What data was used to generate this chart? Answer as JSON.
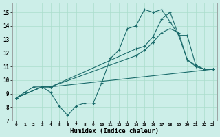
{
  "title": "",
  "xlabel": "Humidex (Indice chaleur)",
  "background_color": "#cceee8",
  "grid_color": "#aaddcc",
  "line_color": "#1a6b6b",
  "xlim": [
    -0.5,
    23.5
  ],
  "ylim": [
    7,
    15.7
  ],
  "yticks": [
    7,
    8,
    9,
    10,
    11,
    12,
    13,
    14,
    15
  ],
  "xticks": [
    0,
    1,
    2,
    3,
    4,
    5,
    6,
    7,
    8,
    9,
    10,
    11,
    12,
    13,
    14,
    15,
    16,
    17,
    18,
    19,
    20,
    21,
    22,
    23
  ],
  "lines": [
    {
      "x": [
        0,
        1,
        2,
        3,
        4,
        5,
        6,
        7,
        8,
        9,
        10,
        11,
        12,
        13,
        14,
        15,
        16,
        17,
        18,
        19,
        20,
        21,
        22,
        23
      ],
      "y": [
        8.7,
        9.1,
        9.5,
        9.5,
        9.1,
        8.1,
        7.4,
        8.1,
        8.3,
        8.3,
        9.8,
        11.6,
        12.2,
        13.8,
        14.0,
        15.2,
        15.0,
        15.2,
        14.3,
        13.3,
        11.5,
        11.1,
        10.8,
        10.8
      ]
    },
    {
      "x": [
        0,
        3,
        4,
        14,
        15,
        16,
        17,
        18,
        19,
        20,
        21,
        22,
        23
      ],
      "y": [
        8.7,
        9.5,
        9.5,
        12.3,
        12.5,
        13.2,
        14.5,
        15.0,
        13.3,
        13.3,
        11.1,
        10.8,
        10.8
      ]
    },
    {
      "x": [
        0,
        3,
        4,
        14,
        15,
        16,
        17,
        18,
        19,
        20,
        21,
        22,
        23
      ],
      "y": [
        8.7,
        9.5,
        9.5,
        11.8,
        12.2,
        12.8,
        13.5,
        13.8,
        13.5,
        11.5,
        11.0,
        10.8,
        10.8
      ]
    },
    {
      "x": [
        0,
        3,
        4,
        23
      ],
      "y": [
        8.7,
        9.5,
        9.5,
        10.8
      ]
    }
  ]
}
